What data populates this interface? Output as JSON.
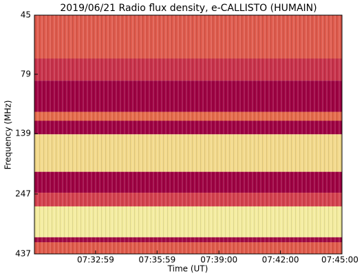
{
  "chart_data": {
    "type": "spectrogram",
    "title": "2019/06/21  Radio flux density, e-CALLISTO (HUMAIN)",
    "x_label": "Time (UT)",
    "y_label": "Frequency (MHz)",
    "xlim": [
      "07:30:00",
      "07:45:00"
    ],
    "xticks": [
      "07:32:59",
      "07:35:59",
      "07:39:00",
      "07:42:00",
      "07:45:00"
    ],
    "ylim": [
      45,
      437
    ],
    "yticks": [
      45,
      79,
      139,
      247,
      437
    ],
    "y_scale": "log",
    "y_inverted": true,
    "bands": [
      {
        "from": 45,
        "to": 68,
        "color": "#df5a4c"
      },
      {
        "from": 68,
        "to": 84,
        "color": "#c8314a"
      },
      {
        "from": 84,
        "to": 113,
        "color": "#9e0142"
      },
      {
        "from": 113,
        "to": 123,
        "color": "#e56a4a"
      },
      {
        "from": 123,
        "to": 140,
        "color": "#9e0142"
      },
      {
        "from": 140,
        "to": 200,
        "color": "#f3d98a"
      },
      {
        "from": 200,
        "to": 244,
        "color": "#9e0142"
      },
      {
        "from": 244,
        "to": 278,
        "color": "#d4404d"
      },
      {
        "from": 278,
        "to": 373,
        "color": "#f4ec9e"
      },
      {
        "from": 373,
        "to": 391,
        "color": "#a10a44"
      },
      {
        "from": 391,
        "to": 437,
        "color": "#e05a4a"
      }
    ]
  }
}
